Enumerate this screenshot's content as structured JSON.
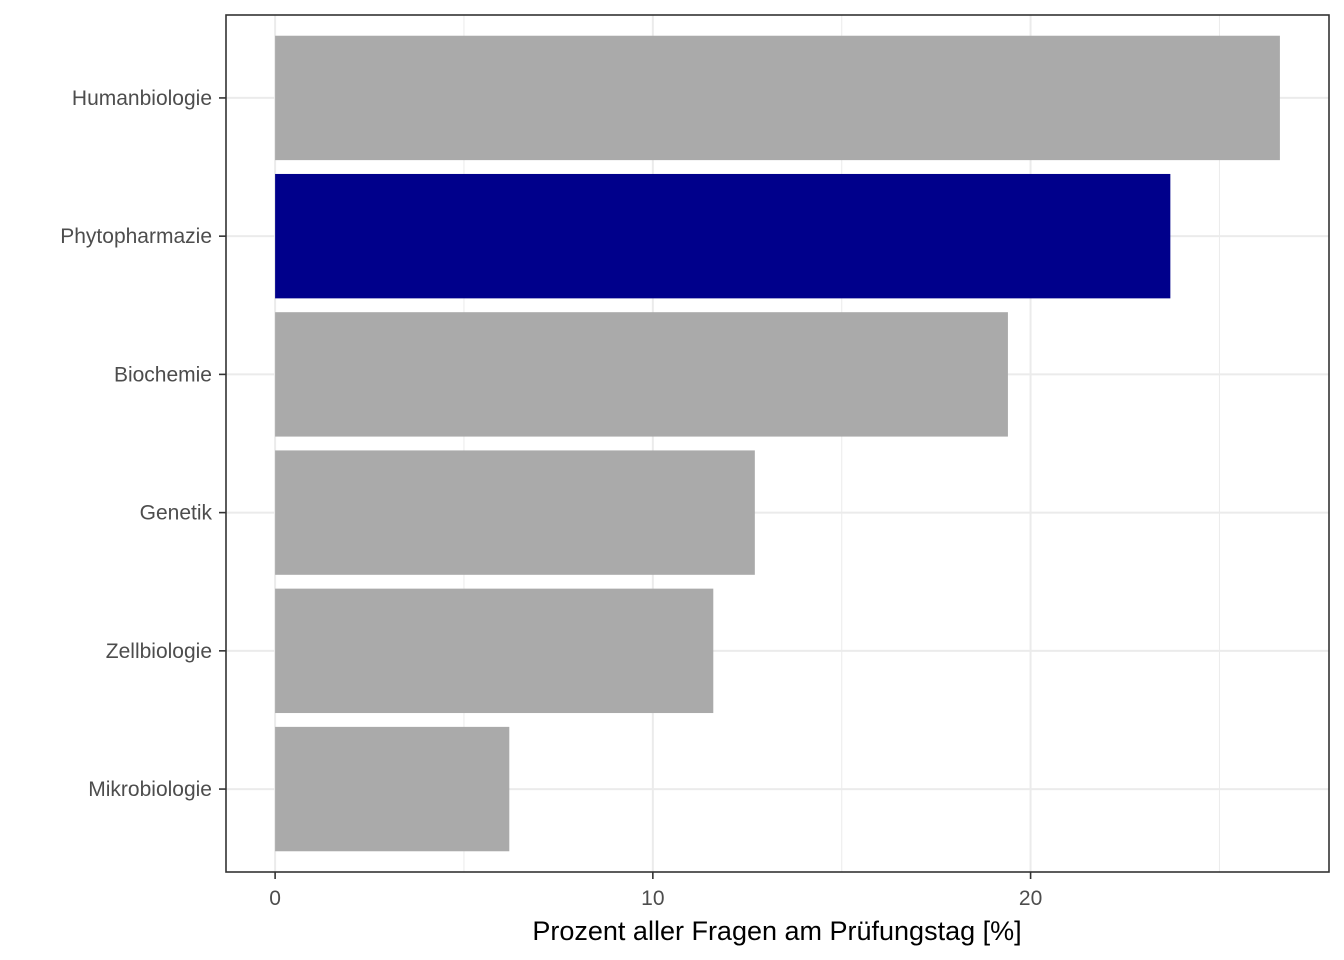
{
  "chart_data": {
    "type": "bar",
    "orientation": "horizontal",
    "title": "",
    "xlabel": "Prozent aller Fragen am Prüfungstag [%]",
    "ylabel": "",
    "categories": [
      "Humanbiologie",
      "Phytopharmazie",
      "Biochemie",
      "Genetik",
      "Zellbiologie",
      "Mikrobiologie"
    ],
    "values": [
      26.6,
      23.7,
      19.4,
      12.7,
      11.6,
      6.2
    ],
    "highlight": "Phytopharmazie",
    "colors": {
      "default": "#aaaaaa",
      "highlight": "#00008b"
    },
    "xlim": [
      -1.3,
      27.9
    ],
    "xticks": [
      0,
      10,
      20
    ],
    "grid": true,
    "legend": "none"
  }
}
